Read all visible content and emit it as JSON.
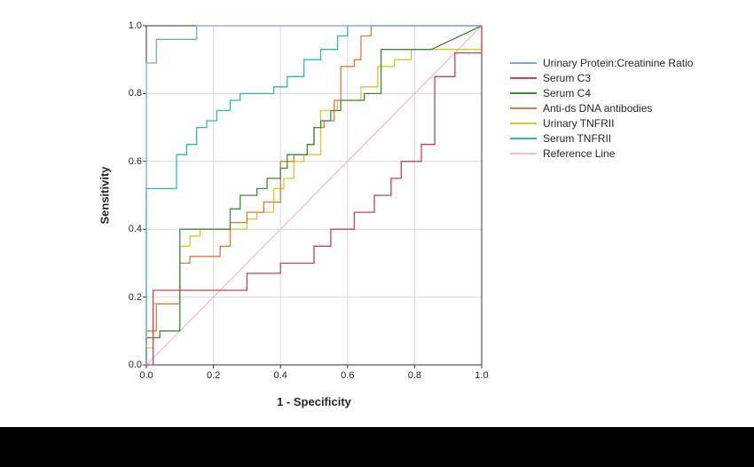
{
  "chart_data": {
    "type": "line",
    "title": "",
    "xlabel": "1 - Specificity",
    "ylabel": "Sensitivity",
    "xlim": [
      0,
      1
    ],
    "ylim": [
      0,
      1
    ],
    "tick_values": [
      0,
      0.2,
      0.4,
      0.6,
      0.8,
      1
    ],
    "tick_labels": [
      "0.0",
      "0.2",
      "0.4",
      "0.6",
      "0.8",
      "1.0"
    ],
    "grid": true,
    "legend_position": "right",
    "colors": {
      "grid": "#d9d9d9",
      "axis": "#333333",
      "background": "#ffffff"
    },
    "series": [
      {
        "name": "Urinary Protein:Creatinine Ratio",
        "color": "#7aa6d8",
        "points": [
          [
            0,
            0
          ],
          [
            0,
            0.89
          ],
          [
            0.03,
            0.89
          ],
          [
            0.03,
            0.96
          ],
          [
            0.15,
            0.96
          ],
          [
            0.15,
            1.0
          ],
          [
            1,
            1
          ]
        ]
      },
      {
        "name": "Serum C3",
        "color": "#c8415e",
        "points": [
          [
            0,
            0
          ],
          [
            0.02,
            0
          ],
          [
            0.02,
            0.22
          ],
          [
            0.3,
            0.22
          ],
          [
            0.3,
            0.27
          ],
          [
            0.4,
            0.27
          ],
          [
            0.4,
            0.3
          ],
          [
            0.5,
            0.3
          ],
          [
            0.5,
            0.35
          ],
          [
            0.55,
            0.35
          ],
          [
            0.55,
            0.4
          ],
          [
            0.62,
            0.4
          ],
          [
            0.62,
            0.45
          ],
          [
            0.68,
            0.45
          ],
          [
            0.68,
            0.5
          ],
          [
            0.73,
            0.5
          ],
          [
            0.73,
            0.55
          ],
          [
            0.76,
            0.55
          ],
          [
            0.76,
            0.6
          ],
          [
            0.82,
            0.6
          ],
          [
            0.82,
            0.65
          ],
          [
            0.86,
            0.65
          ],
          [
            0.86,
            0.85
          ],
          [
            0.92,
            0.85
          ],
          [
            0.92,
            0.92
          ],
          [
            1.0,
            0.92
          ],
          [
            1.0,
            1.0
          ]
        ]
      },
      {
        "name": "Serum C4",
        "color": "#3c8a3e",
        "points": [
          [
            0,
            0
          ],
          [
            0,
            0.08
          ],
          [
            0.04,
            0.08
          ],
          [
            0.04,
            0.1
          ],
          [
            0.1,
            0.1
          ],
          [
            0.1,
            0.4
          ],
          [
            0.25,
            0.4
          ],
          [
            0.25,
            0.46
          ],
          [
            0.28,
            0.46
          ],
          [
            0.28,
            0.5
          ],
          [
            0.33,
            0.5
          ],
          [
            0.33,
            0.52
          ],
          [
            0.36,
            0.52
          ],
          [
            0.36,
            0.55
          ],
          [
            0.4,
            0.55
          ],
          [
            0.4,
            0.58
          ],
          [
            0.42,
            0.58
          ],
          [
            0.42,
            0.62
          ],
          [
            0.48,
            0.62
          ],
          [
            0.48,
            0.65
          ],
          [
            0.5,
            0.65
          ],
          [
            0.5,
            0.7
          ],
          [
            0.52,
            0.7
          ],
          [
            0.52,
            0.72
          ],
          [
            0.55,
            0.72
          ],
          [
            0.55,
            0.75
          ],
          [
            0.58,
            0.75
          ],
          [
            0.58,
            0.78
          ],
          [
            0.65,
            0.78
          ],
          [
            0.65,
            0.8
          ],
          [
            0.7,
            0.8
          ],
          [
            0.7,
            0.93
          ],
          [
            0.85,
            0.93
          ],
          [
            1.0,
            1.0
          ]
        ]
      },
      {
        "name": "Anti-ds DNA antibodies",
        "color": "#e0793d",
        "points": [
          [
            0,
            0
          ],
          [
            0,
            0.1
          ],
          [
            0.03,
            0.1
          ],
          [
            0.03,
            0.18
          ],
          [
            0.1,
            0.18
          ],
          [
            0.1,
            0.3
          ],
          [
            0.13,
            0.3
          ],
          [
            0.13,
            0.32
          ],
          [
            0.22,
            0.32
          ],
          [
            0.22,
            0.35
          ],
          [
            0.25,
            0.35
          ],
          [
            0.25,
            0.42
          ],
          [
            0.3,
            0.42
          ],
          [
            0.3,
            0.45
          ],
          [
            0.35,
            0.45
          ],
          [
            0.35,
            0.48
          ],
          [
            0.4,
            0.48
          ],
          [
            0.4,
            0.6
          ],
          [
            0.44,
            0.6
          ],
          [
            0.44,
            0.62
          ],
          [
            0.48,
            0.62
          ],
          [
            0.48,
            0.65
          ],
          [
            0.5,
            0.65
          ],
          [
            0.5,
            0.7
          ],
          [
            0.53,
            0.7
          ],
          [
            0.53,
            0.72
          ],
          [
            0.56,
            0.72
          ],
          [
            0.56,
            0.78
          ],
          [
            0.58,
            0.78
          ],
          [
            0.58,
            0.88
          ],
          [
            0.62,
            0.88
          ],
          [
            0.62,
            0.9
          ],
          [
            0.64,
            0.9
          ],
          [
            0.64,
            0.97
          ],
          [
            0.67,
            0.97
          ],
          [
            0.67,
            1.0
          ],
          [
            1,
            1
          ]
        ]
      },
      {
        "name": "Urinary TNFRII",
        "color": "#d9c730",
        "points": [
          [
            0,
            0
          ],
          [
            0,
            0.05
          ],
          [
            0.02,
            0.05
          ],
          [
            0.02,
            0.18
          ],
          [
            0.1,
            0.18
          ],
          [
            0.1,
            0.35
          ],
          [
            0.13,
            0.35
          ],
          [
            0.13,
            0.38
          ],
          [
            0.16,
            0.38
          ],
          [
            0.16,
            0.4
          ],
          [
            0.3,
            0.4
          ],
          [
            0.3,
            0.43
          ],
          [
            0.33,
            0.43
          ],
          [
            0.33,
            0.45
          ],
          [
            0.38,
            0.45
          ],
          [
            0.38,
            0.52
          ],
          [
            0.41,
            0.52
          ],
          [
            0.41,
            0.55
          ],
          [
            0.44,
            0.55
          ],
          [
            0.44,
            0.6
          ],
          [
            0.47,
            0.6
          ],
          [
            0.47,
            0.62
          ],
          [
            0.52,
            0.62
          ],
          [
            0.52,
            0.75
          ],
          [
            0.57,
            0.75
          ],
          [
            0.57,
            0.78
          ],
          [
            0.64,
            0.78
          ],
          [
            0.64,
            0.82
          ],
          [
            0.69,
            0.82
          ],
          [
            0.69,
            0.88
          ],
          [
            0.74,
            0.88
          ],
          [
            0.74,
            0.9
          ],
          [
            0.79,
            0.9
          ],
          [
            0.79,
            0.93
          ],
          [
            1.0,
            0.93
          ],
          [
            1.0,
            1.0
          ]
        ]
      },
      {
        "name": "Serum TNFRII",
        "color": "#2fb8b0",
        "points": [
          [
            0,
            0
          ],
          [
            0,
            0.52
          ],
          [
            0.09,
            0.52
          ],
          [
            0.09,
            0.62
          ],
          [
            0.12,
            0.62
          ],
          [
            0.12,
            0.65
          ],
          [
            0.15,
            0.65
          ],
          [
            0.15,
            0.7
          ],
          [
            0.18,
            0.7
          ],
          [
            0.18,
            0.72
          ],
          [
            0.21,
            0.72
          ],
          [
            0.21,
            0.75
          ],
          [
            0.25,
            0.75
          ],
          [
            0.25,
            0.78
          ],
          [
            0.28,
            0.78
          ],
          [
            0.28,
            0.8
          ],
          [
            0.38,
            0.8
          ],
          [
            0.38,
            0.82
          ],
          [
            0.42,
            0.82
          ],
          [
            0.42,
            0.85
          ],
          [
            0.47,
            0.85
          ],
          [
            0.47,
            0.9
          ],
          [
            0.52,
            0.9
          ],
          [
            0.52,
            0.93
          ],
          [
            0.57,
            0.93
          ],
          [
            0.57,
            0.97
          ],
          [
            0.6,
            0.97
          ],
          [
            0.6,
            1.0
          ],
          [
            1,
            1
          ]
        ]
      },
      {
        "name": "Reference Line",
        "color": "#f6bdc9",
        "points": [
          [
            0,
            0
          ],
          [
            1,
            1
          ]
        ]
      }
    ]
  }
}
